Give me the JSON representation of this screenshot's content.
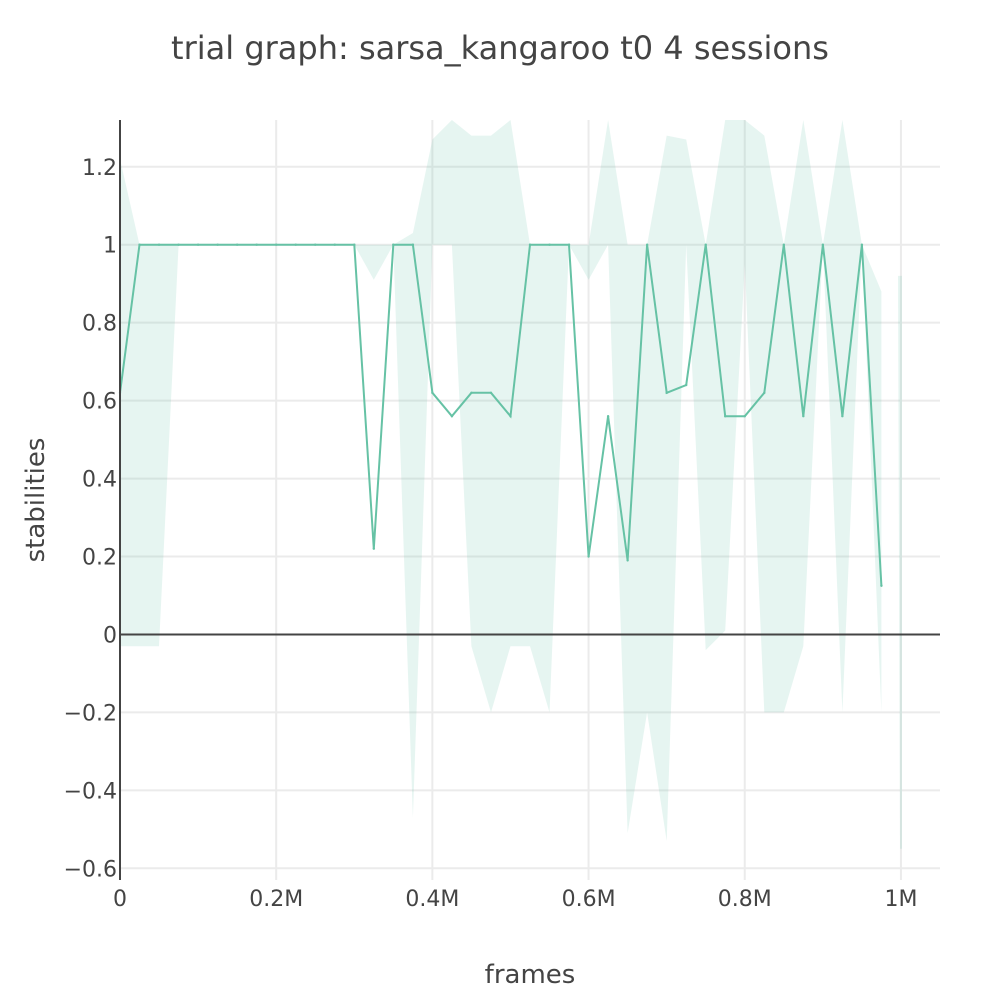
{
  "chart_data": {
    "type": "line",
    "title": "trial graph: sarsa_kangaroo t0 4 sessions",
    "xlabel": "frames",
    "ylabel": "stabilities",
    "xlim": [
      0,
      1050000
    ],
    "ylim": [
      -0.63,
      1.32
    ],
    "grid": true,
    "legend": "none",
    "x_ticks": [
      {
        "value": 0,
        "label": "0"
      },
      {
        "value": 200000,
        "label": "0.2M"
      },
      {
        "value": 400000,
        "label": "0.4M"
      },
      {
        "value": 600000,
        "label": "0.6M"
      },
      {
        "value": 800000,
        "label": "0.8M"
      },
      {
        "value": 1000000,
        "label": "1M"
      }
    ],
    "y_ticks": [
      {
        "value": 1.2,
        "label": "1.2"
      },
      {
        "value": 1,
        "label": "1"
      },
      {
        "value": 0.8,
        "label": "0.8"
      },
      {
        "value": 0.6,
        "label": "0.6"
      },
      {
        "value": 0.4,
        "label": "0.4"
      },
      {
        "value": 0.2,
        "label": "0.2"
      },
      {
        "value": 0,
        "label": "0"
      },
      {
        "value": -0.2,
        "label": "−0.2"
      },
      {
        "value": -0.4,
        "label": "−0.4"
      },
      {
        "value": -0.6,
        "label": "−0.6"
      }
    ],
    "series": [
      {
        "color": "#66c2a5",
        "band_color": "#66c2a5",
        "band_opacity": 0.16,
        "x": [
          0,
          25000,
          50000,
          75000,
          100000,
          125000,
          150000,
          175000,
          200000,
          225000,
          250000,
          275000,
          300000,
          325000,
          350000,
          375000,
          400000,
          425000,
          450000,
          475000,
          500000,
          525000,
          550000,
          575000,
          600000,
          625000,
          650000,
          675000,
          700000,
          725000,
          750000,
          775000,
          800000,
          825000,
          850000,
          875000,
          900000,
          925000,
          950000,
          975000
        ],
        "values": [
          0.62,
          1,
          1,
          1,
          1,
          1,
          1,
          1,
          1,
          1,
          1,
          1,
          1,
          0.22,
          1,
          1,
          0.62,
          0.56,
          0.62,
          0.62,
          0.56,
          1,
          1,
          1,
          0.2,
          0.56,
          0.19,
          1,
          0.62,
          0.64,
          1,
          0.56,
          0.56,
          0.62,
          1,
          0.56,
          1,
          0.56,
          1,
          0.125
        ],
        "upper": [
          1.22,
          1,
          1,
          1,
          1,
          1,
          1,
          1,
          1,
          1,
          1,
          1,
          1,
          1,
          1,
          1.03,
          1.27,
          1.32,
          1.28,
          1.28,
          1.32,
          1,
          1,
          1,
          1,
          1.32,
          1,
          1,
          1.28,
          1.27,
          1,
          1.32,
          1.32,
          1.28,
          1,
          1.32,
          1,
          1.32,
          1,
          0.88
        ],
        "lower": [
          -0.03,
          -0.03,
          -0.03,
          1,
          1,
          1,
          1,
          1,
          1,
          1,
          1,
          1,
          1,
          0.91,
          1,
          -0.47,
          1,
          1,
          -0.03,
          -0.2,
          -0.03,
          -0.03,
          -0.2,
          1,
          0.91,
          1,
          -0.51,
          -0.2,
          -0.53,
          1,
          -0.04,
          0.01,
          0.95,
          -0.2,
          -0.2,
          -0.03,
          1,
          -0.2,
          1,
          -0.2
        ]
      }
    ],
    "extra_band": {
      "x": [
        1000000
      ],
      "upper": [
        0.92
      ],
      "lower": [
        -0.55
      ]
    }
  }
}
